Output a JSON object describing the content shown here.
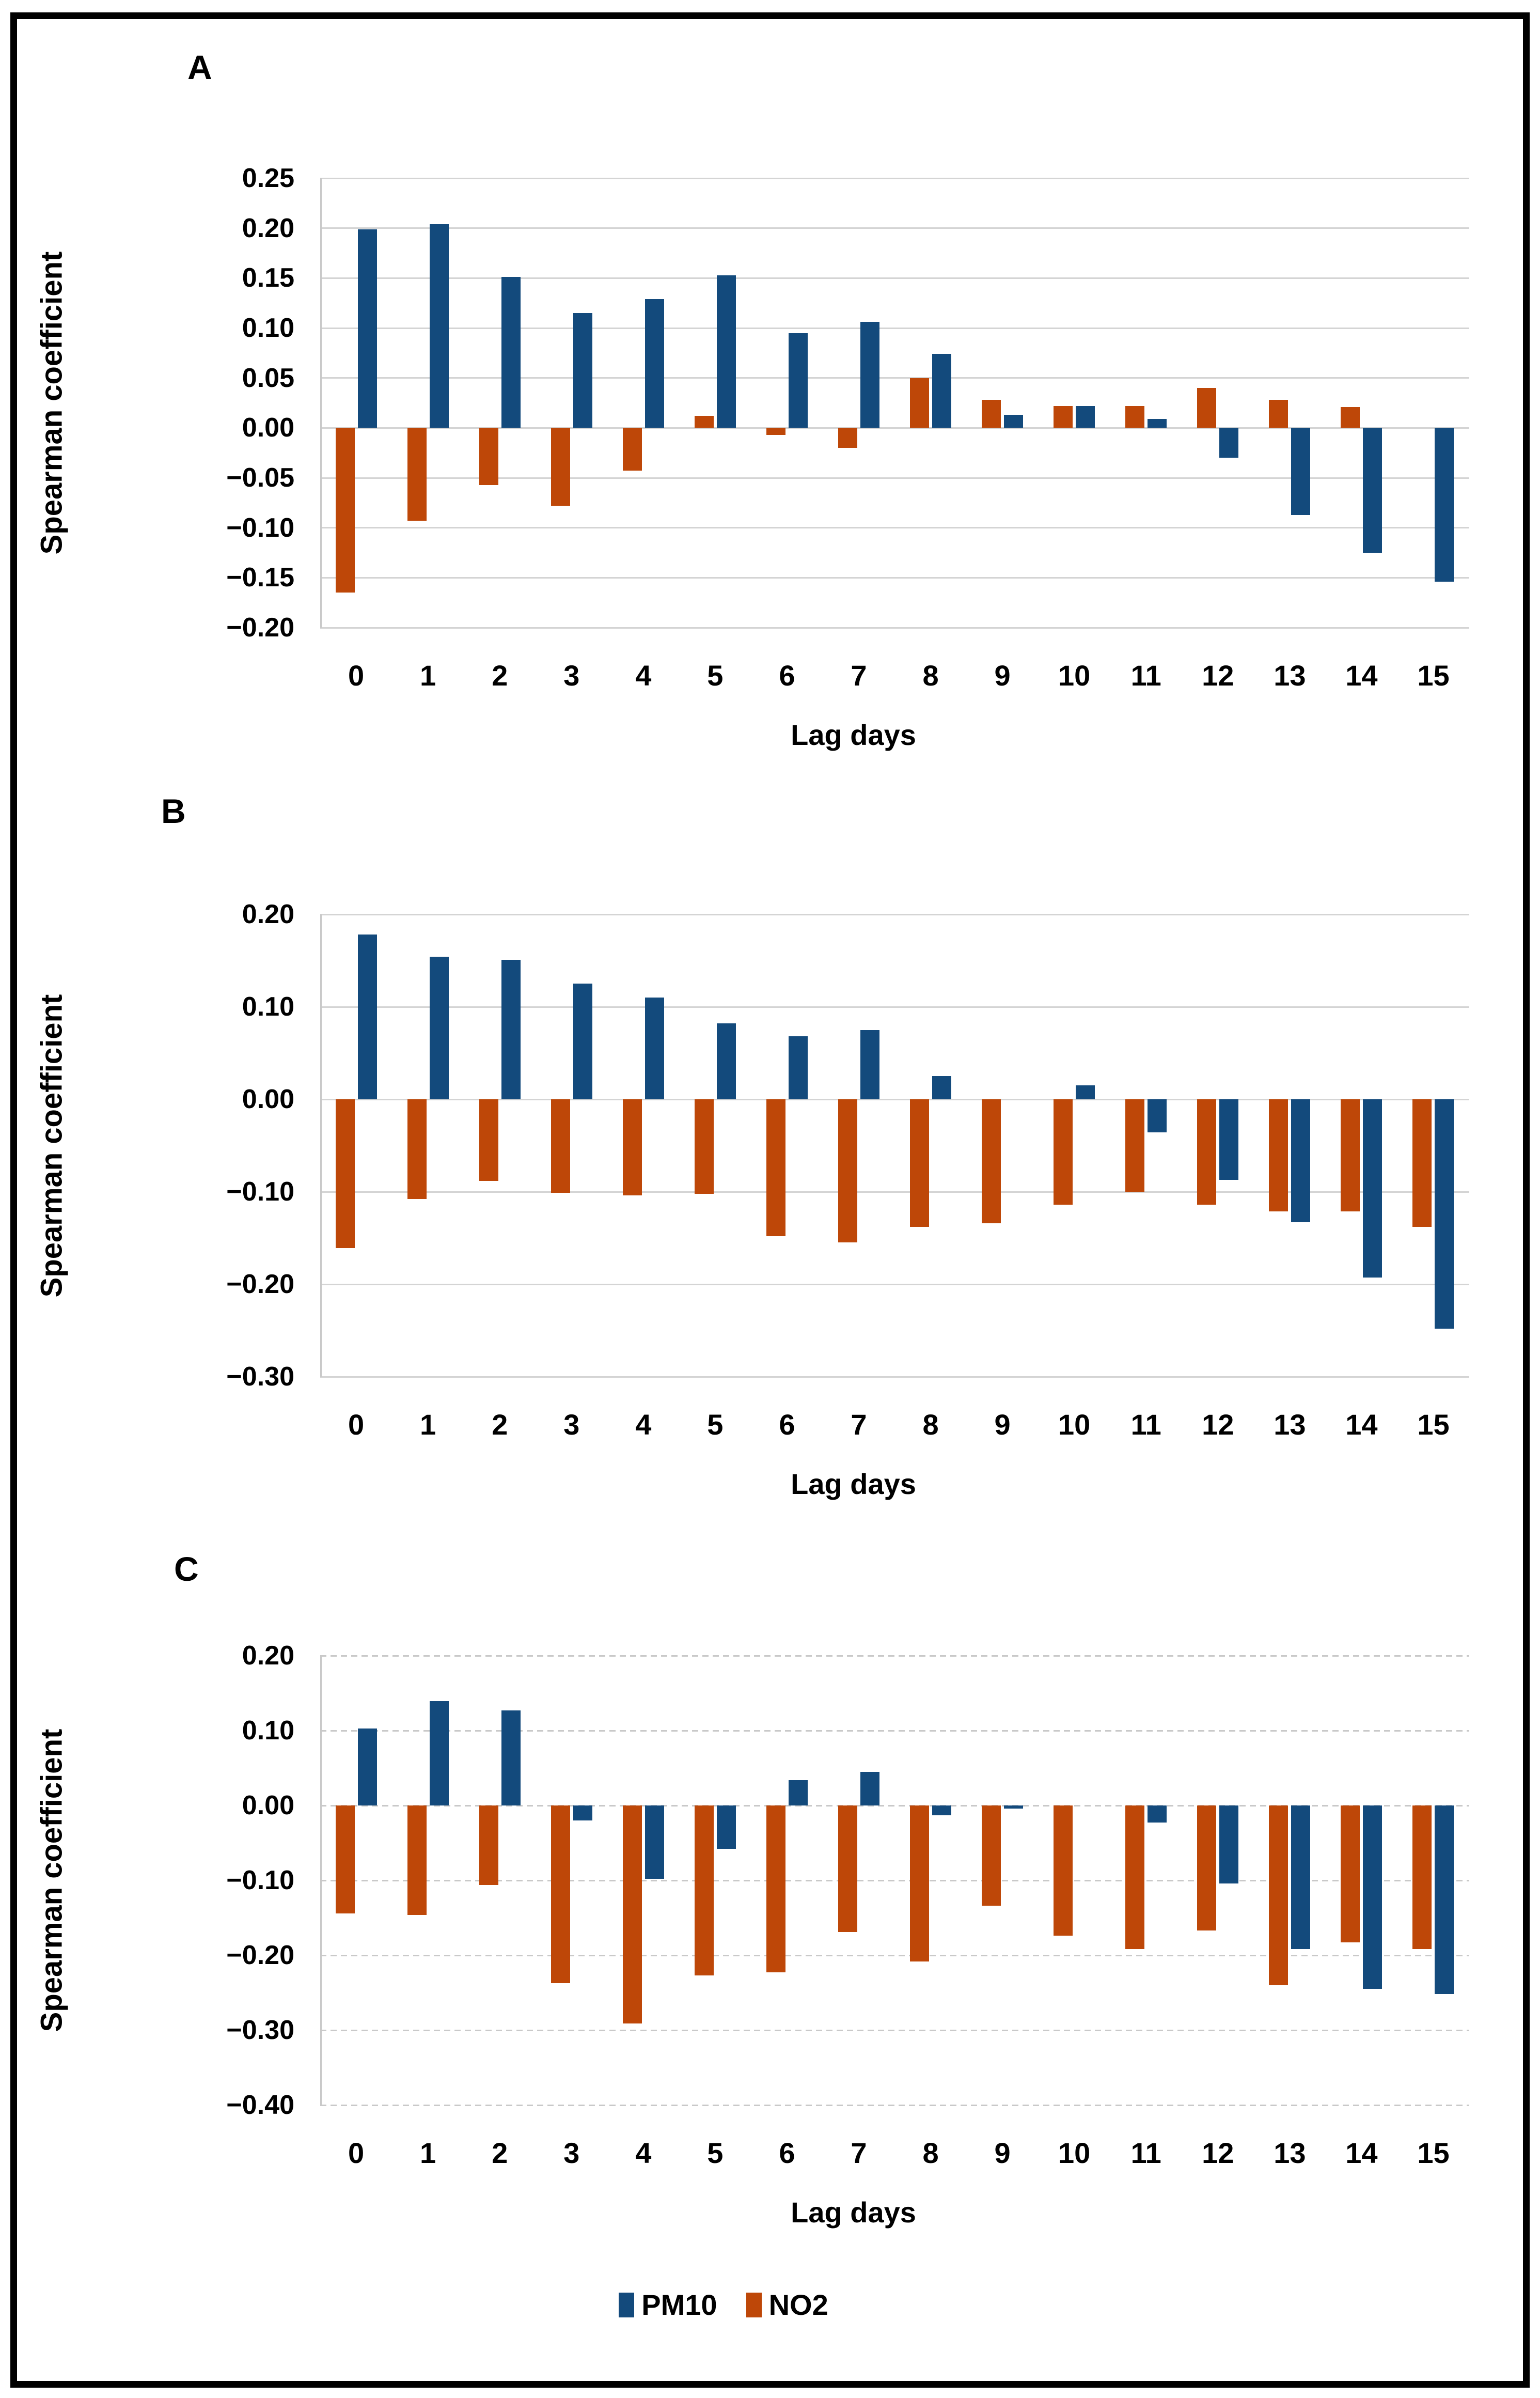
{
  "figure": {
    "panels": [
      {
        "label": "A",
        "y_axis_title": "Spearman coefficient",
        "x_axis_title": "Lag days"
      },
      {
        "label": "B",
        "y_axis_title": "Spearman coefficient",
        "x_axis_title": "Lag days"
      },
      {
        "label": "C",
        "y_axis_title": "Spearman coefficient",
        "x_axis_title": "Lag days"
      }
    ],
    "legend": {
      "items": [
        {
          "label": "PM10",
          "color": "#134A7C"
        },
        {
          "label": "NO2",
          "color": "#BE4708"
        }
      ]
    }
  },
  "chart_data": [
    {
      "type": "bar",
      "panel": "A",
      "title": "",
      "xlabel": "Lag days",
      "ylabel": "Spearman coefficient",
      "categories": [
        "0",
        "1",
        "2",
        "3",
        "4",
        "5",
        "6",
        "7",
        "8",
        "9",
        "10",
        "11",
        "12",
        "13",
        "14",
        "15"
      ],
      "series": [
        {
          "name": "PM10",
          "color": "#134A7C",
          "values": [
            0.199,
            0.204,
            0.151,
            0.115,
            0.129,
            0.153,
            0.095,
            0.106,
            0.074,
            0.013,
            0.022,
            0.009,
            -0.03,
            -0.087,
            -0.125,
            -0.154
          ]
        },
        {
          "name": "NO2",
          "color": "#BE4708",
          "values": [
            -0.165,
            -0.093,
            -0.057,
            -0.078,
            -0.043,
            0.012,
            -0.007,
            -0.02,
            0.05,
            0.028,
            0.022,
            0.022,
            0.04,
            0.028,
            0.021,
            0
          ]
        }
      ],
      "draw_order": [
        "NO2",
        "PM10"
      ],
      "ylim": [
        -0.2,
        0.25
      ],
      "ytick_step": 0.05,
      "grid": true,
      "gridline_style": "solid",
      "legend_position": "none"
    },
    {
      "type": "bar",
      "panel": "B",
      "title": "",
      "xlabel": "Lag days",
      "ylabel": "Spearman coefficient",
      "categories": [
        "0",
        "1",
        "2",
        "3",
        "4",
        "5",
        "6",
        "7",
        "8",
        "9",
        "10",
        "11",
        "12",
        "13",
        "14",
        "15"
      ],
      "series": [
        {
          "name": "PM10",
          "color": "#134A7C",
          "values": [
            0.178,
            0.154,
            0.151,
            0.125,
            0.11,
            0.082,
            0.068,
            0.075,
            0.025,
            0,
            0.015,
            -0.036,
            -0.087,
            -0.133,
            -0.193,
            -0.248
          ]
        },
        {
          "name": "NO2",
          "color": "#BE4708",
          "values": [
            -0.161,
            -0.108,
            -0.088,
            -0.101,
            -0.104,
            -0.102,
            -0.148,
            -0.155,
            -0.138,
            -0.134,
            -0.114,
            -0.1,
            -0.114,
            -0.121,
            -0.121,
            -0.138
          ]
        }
      ],
      "draw_order": [
        "NO2",
        "PM10"
      ],
      "ylim": [
        -0.3,
        0.2
      ],
      "ytick_step": 0.1,
      "grid": true,
      "gridline_style": "solid",
      "legend_position": "none"
    },
    {
      "type": "bar",
      "panel": "C",
      "title": "",
      "xlabel": "Lag days",
      "ylabel": "Spearman coefficient",
      "categories": [
        "0",
        "1",
        "2",
        "3",
        "4",
        "5",
        "6",
        "7",
        "8",
        "9",
        "10",
        "11",
        "12",
        "13",
        "14",
        "15"
      ],
      "series": [
        {
          "name": "PM10",
          "color": "#134A7C",
          "values": [
            0.103,
            0.139,
            0.127,
            -0.02,
            -0.098,
            -0.058,
            0.034,
            0.045,
            -0.013,
            -0.004,
            0,
            -0.023,
            -0.104,
            -0.192,
            -0.245,
            -0.252
          ]
        },
        {
          "name": "NO2",
          "color": "#BE4708",
          "values": [
            -0.144,
            -0.146,
            -0.106,
            -0.237,
            -0.291,
            -0.227,
            -0.223,
            -0.169,
            -0.208,
            -0.134,
            -0.174,
            -0.192,
            -0.167,
            -0.24,
            -0.183,
            -0.192
          ]
        }
      ],
      "draw_order": [
        "NO2",
        "PM10"
      ],
      "ylim": [
        -0.4,
        0.2
      ],
      "ytick_step": 0.1,
      "grid": true,
      "gridline_style": "dotted",
      "legend_position": "bottom-center"
    }
  ]
}
